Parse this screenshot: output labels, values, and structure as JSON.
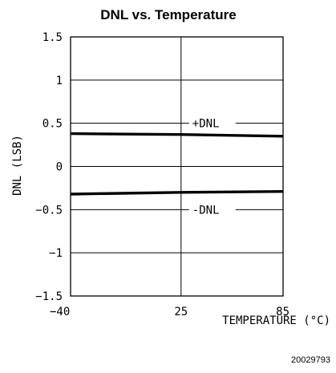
{
  "chart_data": {
    "type": "line",
    "title": "DNL vs. Temperature",
    "xlabel": "TEMPERATURE (°C)",
    "ylabel": "DNL (LSB)",
    "xlim": [
      -40,
      85
    ],
    "ylim": [
      -1.5,
      1.5
    ],
    "x_ticks": [
      "-40",
      "25",
      "85"
    ],
    "y_ticks": [
      "1.5",
      "1",
      "0.5",
      "0",
      "-0.5",
      "-1",
      "-1.5"
    ],
    "grid": true,
    "series": [
      {
        "name": "+DNL",
        "x": [
          -40,
          25,
          85
        ],
        "values": [
          0.38,
          0.37,
          0.35
        ]
      },
      {
        "name": "-DNL",
        "x": [
          -40,
          25,
          85
        ],
        "values": [
          -0.32,
          -0.3,
          -0.29
        ]
      }
    ]
  },
  "figure_id": "20029793"
}
